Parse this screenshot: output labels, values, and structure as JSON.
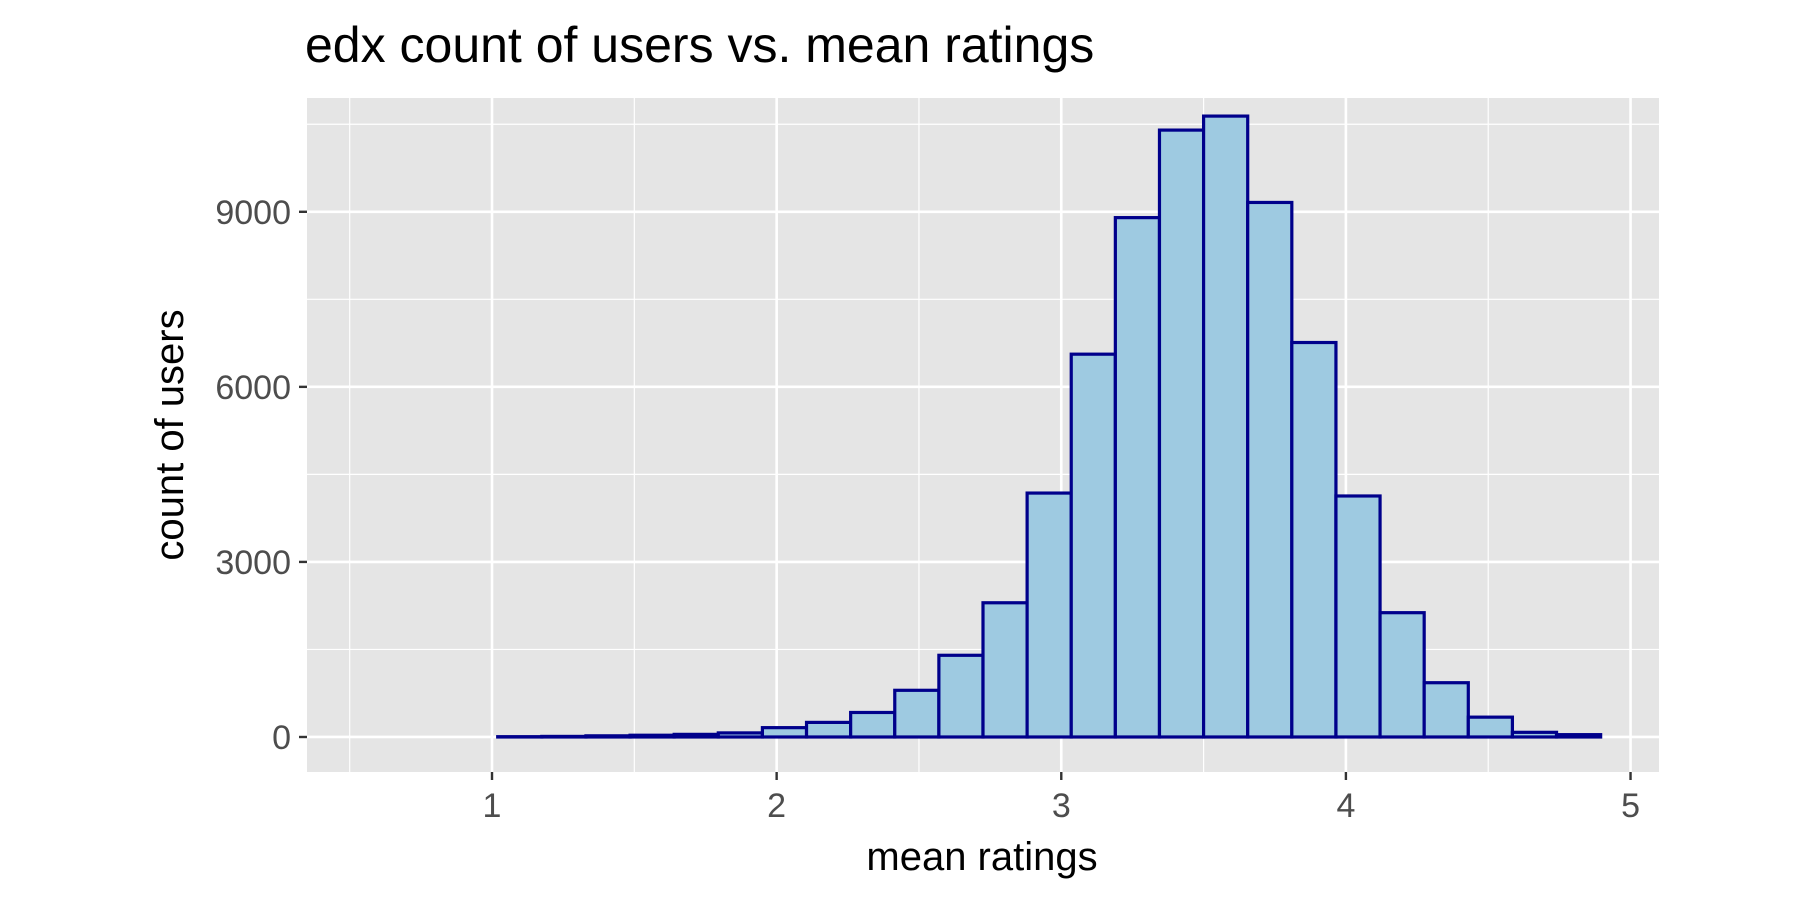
{
  "chart_data": {
    "type": "bar",
    "title": "edx count of users vs. mean ratings",
    "xlabel": "mean ratings",
    "ylabel": "count of users",
    "xlim": [
      0.35,
      5.1
    ],
    "ylim": [
      -600,
      10950
    ],
    "x_ticks": [
      "1",
      "2",
      "3",
      "4",
      "5"
    ],
    "y_ticks": [
      "0",
      "3000",
      "6000",
      "9000"
    ],
    "grid": true,
    "legend": "none",
    "bin_width": 0.155,
    "bins_start": 0.4,
    "values": [
      0,
      0,
      0,
      0,
      5,
      10,
      20,
      30,
      45,
      70,
      160,
      250,
      420,
      800,
      1400,
      2300,
      4180,
      6560,
      8900,
      10400,
      10640,
      9160,
      6760,
      4130,
      2130,
      930,
      340,
      80,
      40
    ],
    "colors": {
      "bar_fill": "#9ecae1",
      "bar_stroke": "#00008b",
      "panel_bg": "#e5e5e5",
      "grid": "#ffffff",
      "tick_text": "#4d4d4d",
      "axis_text": "#000000"
    }
  }
}
